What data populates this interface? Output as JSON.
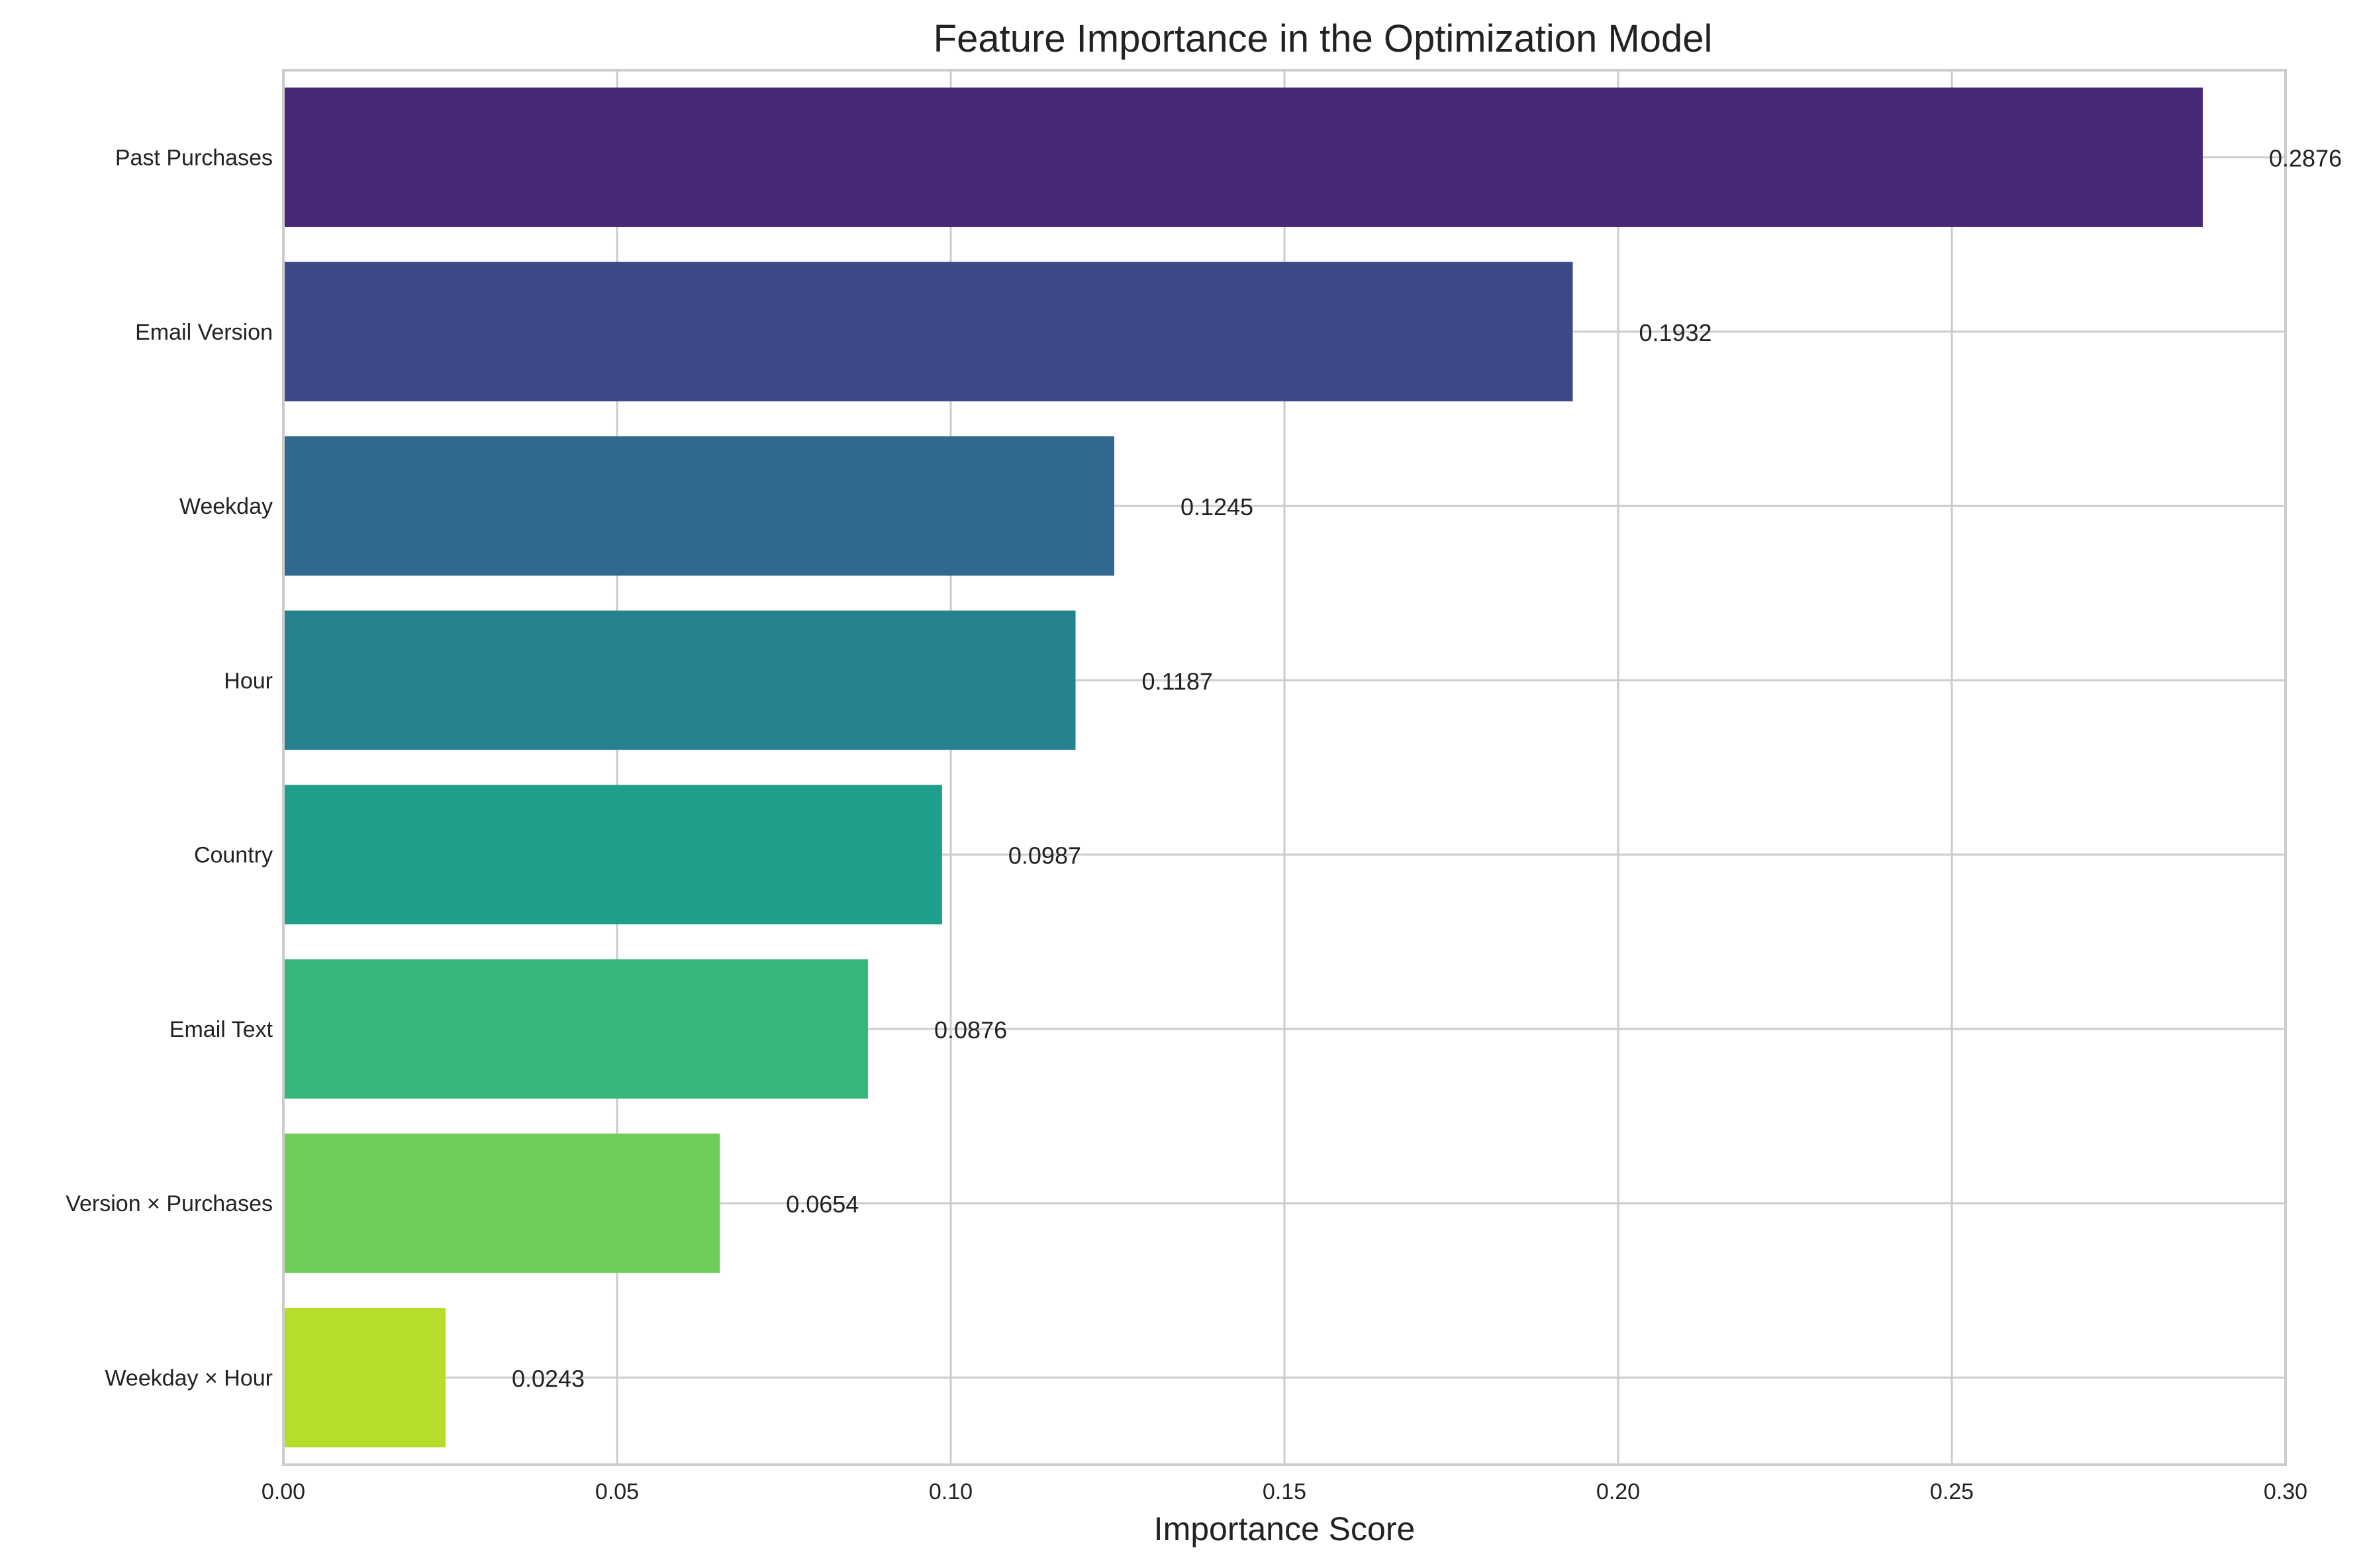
{
  "chart_data": {
    "type": "bar",
    "orientation": "horizontal",
    "title": "Feature Importance in the Optimization Model",
    "xlabel": "Importance Score",
    "ylabel": "",
    "xlim": [
      0,
      0.3
    ],
    "xticks": [
      0,
      0.05,
      0.1,
      0.15,
      0.2,
      0.25,
      0.3
    ],
    "xtick_labels": [
      "0.00",
      "0.05",
      "0.10",
      "0.15",
      "0.20",
      "0.25",
      "0.30"
    ],
    "grid": true,
    "categories": [
      "Past Purchases",
      "Email Version",
      "Weekday",
      "Hour",
      "Country",
      "Email Text",
      "Version × Purchases",
      "Weekday × Hour"
    ],
    "values": [
      0.2876,
      0.1932,
      0.1245,
      0.1187,
      0.0987,
      0.0876,
      0.0654,
      0.0243
    ],
    "value_labels": [
      "0.2876",
      "0.1932",
      "0.1245",
      "0.1187",
      "0.0987",
      "0.0876",
      "0.0654",
      "0.0243"
    ],
    "colors": [
      "#482878",
      "#3e4989",
      "#31688e",
      "#26828e",
      "#1f9e89",
      "#35b779",
      "#6ece58",
      "#b5de2b"
    ]
  }
}
